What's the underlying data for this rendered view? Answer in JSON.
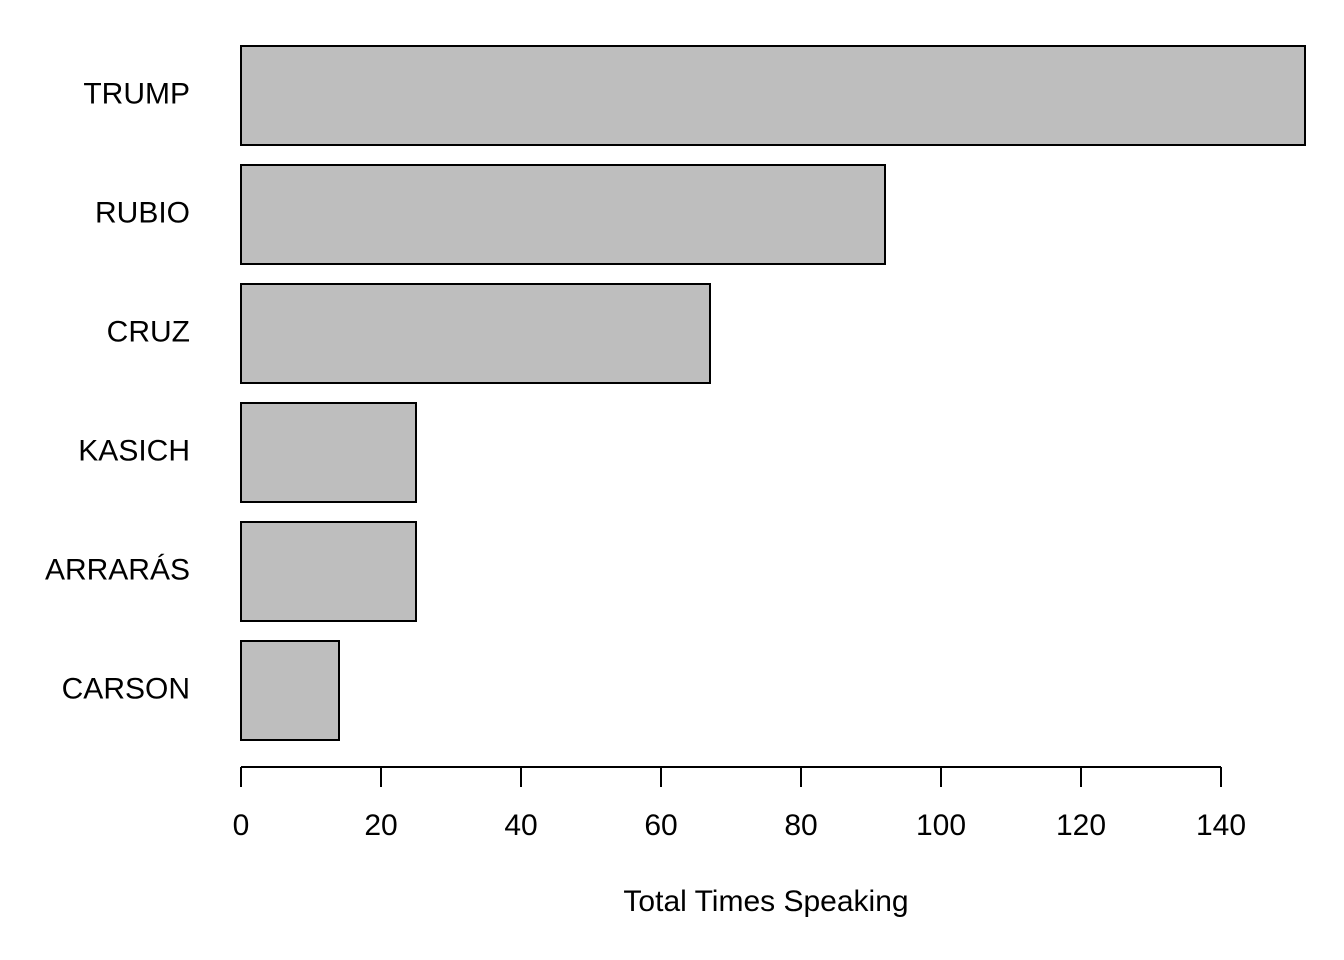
{
  "chart_data": {
    "type": "barh",
    "categories": [
      "TRUMP",
      "RUBIO",
      "CRUZ",
      "KASICH",
      "ARRARÁS",
      "CARSON"
    ],
    "values": [
      152,
      92,
      67,
      25,
      25,
      14
    ],
    "color": "#bebebe",
    "xlabel": "Total Times Speaking",
    "xlim": [
      0,
      152
    ],
    "xticks": [
      0,
      20,
      40,
      60,
      80,
      100,
      120,
      140
    ]
  }
}
